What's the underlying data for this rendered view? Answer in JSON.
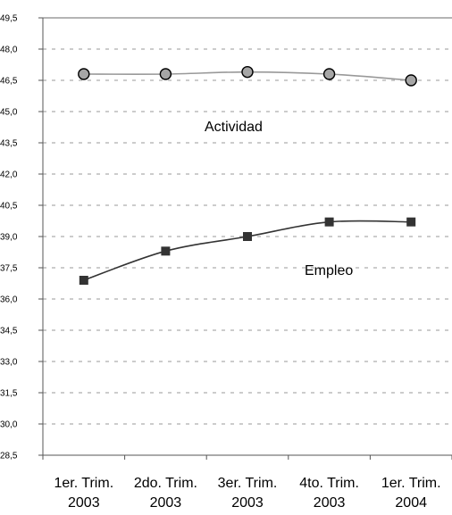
{
  "chart_data": {
    "type": "line",
    "categories": [
      [
        "1er. Trim.",
        "2003"
      ],
      [
        "2do. Trim.",
        "2003"
      ],
      [
        "3er. Trim.",
        "2003"
      ],
      [
        "4to. Trim.",
        "2003"
      ],
      [
        "1er. Trim.",
        "2004"
      ]
    ],
    "series": [
      {
        "name": "Actividad",
        "values": [
          46.8,
          46.8,
          46.9,
          46.8,
          46.5
        ],
        "color": "#999999",
        "marker": "circle"
      },
      {
        "name": "Empleo",
        "values": [
          36.9,
          38.3,
          39.0,
          39.7,
          39.7
        ],
        "color": "#333333",
        "marker": "square"
      }
    ],
    "yticks": [
      "28,5",
      "30,0",
      "31,5",
      "33,0",
      "34,5",
      "36,0",
      "37,5",
      "39,0",
      "40,5",
      "42,0",
      "43,5",
      "45,0",
      "46,5",
      "48,0",
      "49,5"
    ],
    "ylim": [
      28.5,
      49.5
    ],
    "grid": true,
    "grid_style": "dashed",
    "legend": "none"
  }
}
